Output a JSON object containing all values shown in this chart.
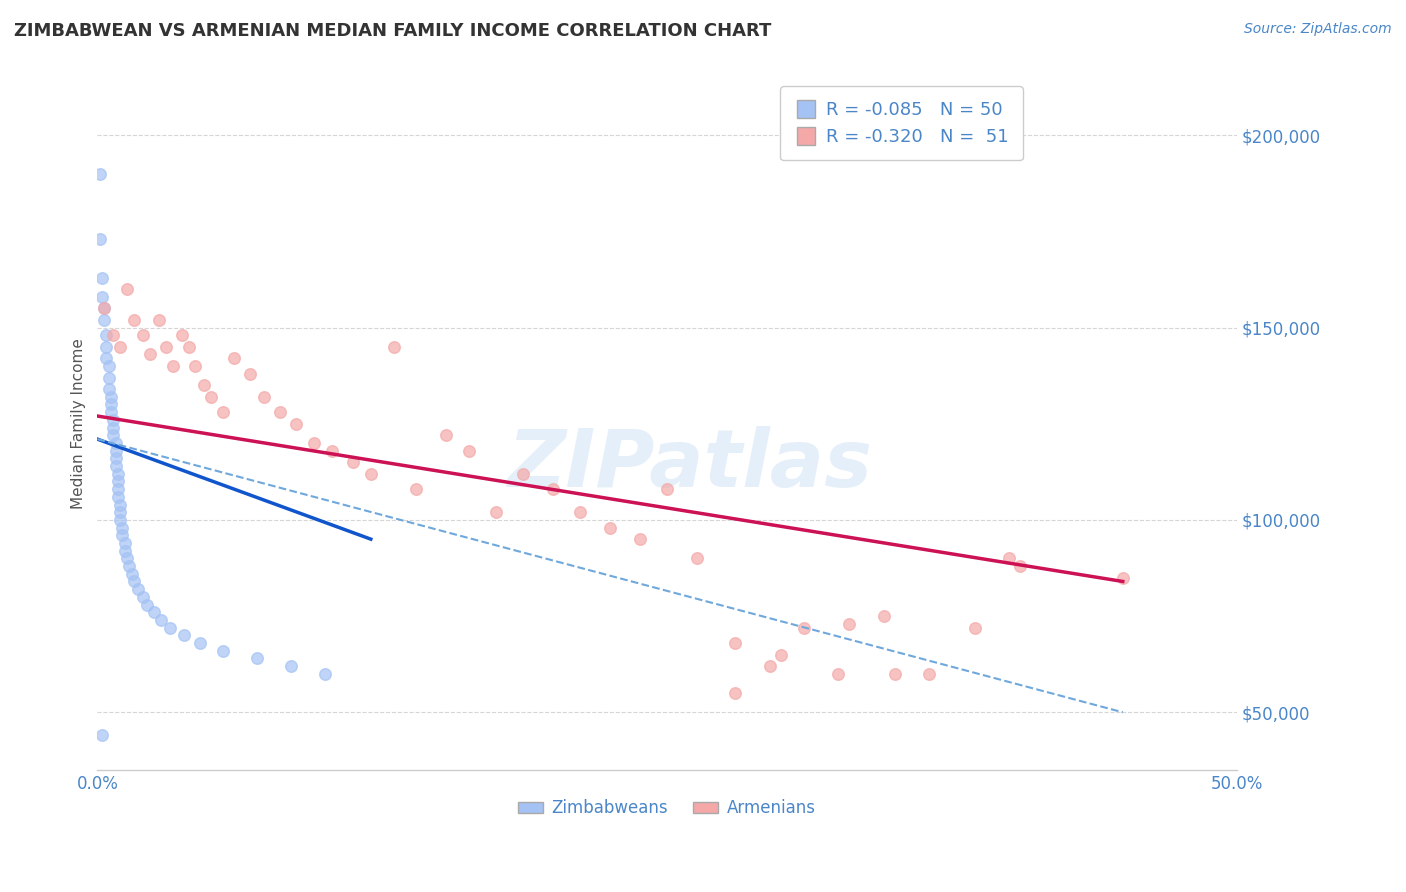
{
  "title": "ZIMBABWEAN VS ARMENIAN MEDIAN FAMILY INCOME CORRELATION CHART",
  "source": "Source: ZipAtlas.com",
  "ylabel": "Median Family Income",
  "xlim": [
    0.0,
    0.5
  ],
  "ylim": [
    35000,
    215000
  ],
  "y_ticks": [
    50000,
    100000,
    150000,
    200000
  ],
  "y_tick_labels": [
    "$50,000",
    "$100,000",
    "$150,000",
    "$200,000"
  ],
  "x_ticks": [
    0.0,
    0.05,
    0.1,
    0.15,
    0.2,
    0.25,
    0.3,
    0.35,
    0.4,
    0.45,
    0.5
  ],
  "x_tick_labels": [
    "0.0%",
    "",
    "",
    "",
    "",
    "",
    "",
    "",
    "",
    "",
    "50.0%"
  ],
  "zimbabwean_color": "#a4c2f4",
  "armenian_color": "#f4a8a8",
  "zimbabwean_line_color": "#1155cc",
  "armenian_line_color": "#cc1155",
  "dashed_line_color": "#6fa8dc",
  "r_zimbabwean": "-0.085",
  "n_zimbabwean": "50",
  "r_armenian": "-0.320",
  "n_armenian": "51",
  "watermark": "ZIPatlas",
  "background_color": "#ffffff",
  "grid_color": "#cccccc",
  "zim_line_x0": 0.0,
  "zim_line_y0": 121000,
  "zim_line_x1": 0.12,
  "zim_line_y1": 95000,
  "arm_line_x0": 0.0,
  "arm_line_y0": 127000,
  "arm_line_x1": 0.45,
  "arm_line_y1": 84000,
  "dash_line_x0": 0.0,
  "dash_line_y0": 121000,
  "dash_line_x1": 0.45,
  "dash_line_y1": 50000,
  "zimbabwean_x": [
    0.001,
    0.002,
    0.002,
    0.003,
    0.003,
    0.004,
    0.004,
    0.004,
    0.005,
    0.005,
    0.005,
    0.006,
    0.006,
    0.006,
    0.007,
    0.007,
    0.007,
    0.008,
    0.008,
    0.008,
    0.008,
    0.009,
    0.009,
    0.009,
    0.009,
    0.01,
    0.01,
    0.01,
    0.011,
    0.011,
    0.012,
    0.012,
    0.013,
    0.014,
    0.015,
    0.016,
    0.018,
    0.02,
    0.022,
    0.025,
    0.028,
    0.032,
    0.038,
    0.045,
    0.055,
    0.07,
    0.085,
    0.1,
    0.002,
    0.001
  ],
  "zimbabwean_y": [
    173000,
    163000,
    158000,
    155000,
    152000,
    148000,
    145000,
    142000,
    140000,
    137000,
    134000,
    132000,
    130000,
    128000,
    126000,
    124000,
    122000,
    120000,
    118000,
    116000,
    114000,
    112000,
    110000,
    108000,
    106000,
    104000,
    102000,
    100000,
    98000,
    96000,
    94000,
    92000,
    90000,
    88000,
    86000,
    84000,
    82000,
    80000,
    78000,
    76000,
    74000,
    72000,
    70000,
    68000,
    66000,
    64000,
    62000,
    60000,
    44000,
    190000
  ],
  "armenian_x": [
    0.003,
    0.007,
    0.01,
    0.013,
    0.016,
    0.02,
    0.023,
    0.027,
    0.03,
    0.033,
    0.037,
    0.04,
    0.043,
    0.047,
    0.05,
    0.055,
    0.06,
    0.067,
    0.073,
    0.08,
    0.087,
    0.095,
    0.103,
    0.112,
    0.12,
    0.13,
    0.14,
    0.153,
    0.163,
    0.175,
    0.187,
    0.2,
    0.212,
    0.225,
    0.238,
    0.25,
    0.263,
    0.28,
    0.295,
    0.31,
    0.325,
    0.345,
    0.365,
    0.385,
    0.405,
    0.28,
    0.3,
    0.33,
    0.35,
    0.4,
    0.45
  ],
  "armenian_y": [
    155000,
    148000,
    145000,
    160000,
    152000,
    148000,
    143000,
    152000,
    145000,
    140000,
    148000,
    145000,
    140000,
    135000,
    132000,
    128000,
    142000,
    138000,
    132000,
    128000,
    125000,
    120000,
    118000,
    115000,
    112000,
    145000,
    108000,
    122000,
    118000,
    102000,
    112000,
    108000,
    102000,
    98000,
    95000,
    108000,
    90000,
    55000,
    62000,
    72000,
    60000,
    75000,
    60000,
    72000,
    88000,
    68000,
    65000,
    73000,
    60000,
    90000,
    85000
  ]
}
